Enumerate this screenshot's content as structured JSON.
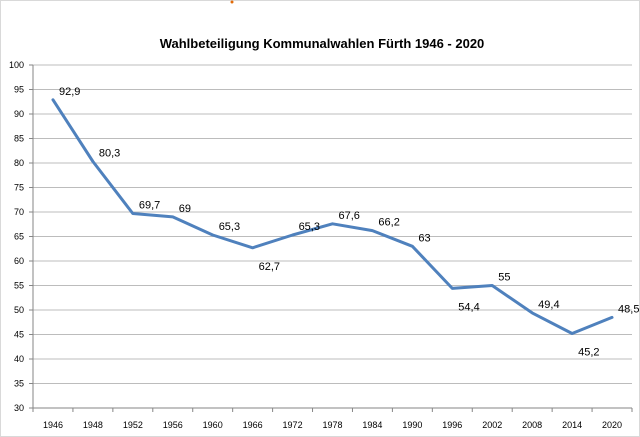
{
  "chart_data": {
    "type": "line",
    "title": "Wahlbeteiligung Kommunalwahlen Fürth 1946 - 2020",
    "xlabel": "",
    "ylabel": "",
    "categories": [
      "1946",
      "1948",
      "1952",
      "1956",
      "1960",
      "1966",
      "1972",
      "1978",
      "1984",
      "1990",
      "1996",
      "2002",
      "2008",
      "2014",
      "2020"
    ],
    "series": [
      {
        "values": [
          92.9,
          80.3,
          69.7,
          69,
          65.3,
          62.7,
          65.3,
          67.6,
          66.2,
          63,
          54.4,
          55,
          49.4,
          45.2,
          48.5
        ],
        "labels": [
          "92,9",
          "80,3",
          "69,7",
          "69",
          "65,3",
          "62,7",
          "65,3",
          "67,6",
          "66,2",
          "63",
          "54,4",
          "55",
          "49,4",
          "45,2",
          "48,5"
        ],
        "color": "#4f81bd"
      }
    ],
    "ylim": [
      30,
      100
    ],
    "yticks": [
      "30",
      "35",
      "40",
      "45",
      "50",
      "55",
      "60",
      "65",
      "70",
      "75",
      "80",
      "85",
      "90",
      "95",
      "100"
    ],
    "grid": true,
    "legend": "none"
  }
}
